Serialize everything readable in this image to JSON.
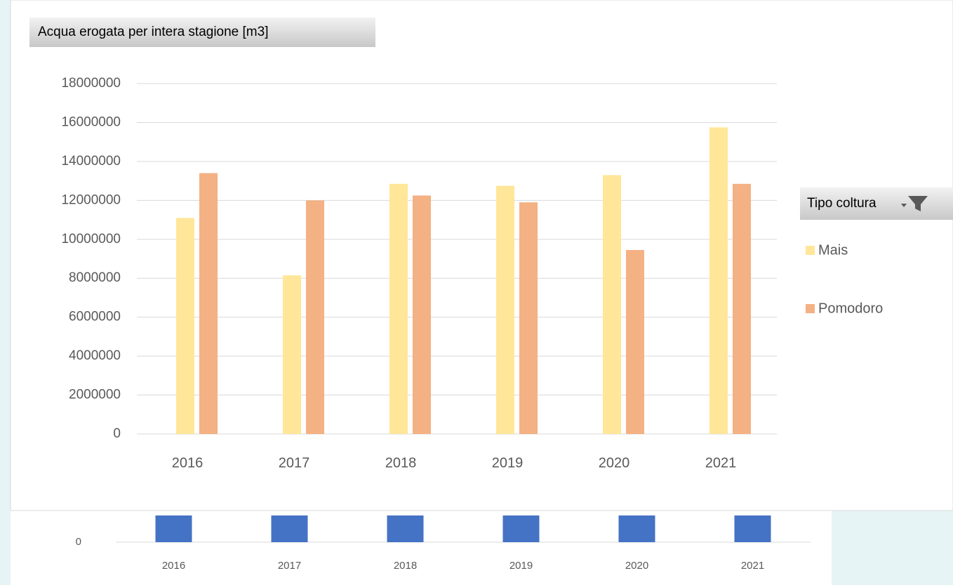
{
  "chart_data": [
    {
      "type": "bar",
      "title": "Acqua erogata per intera stagione [m3]",
      "categories": [
        "2016",
        "2017",
        "2018",
        "2019",
        "2020",
        "2021"
      ],
      "series": [
        {
          "name": "Mais",
          "color": "#ffe699",
          "values": [
            11100000,
            8150000,
            12850000,
            12750000,
            13300000,
            15750000
          ]
        },
        {
          "name": "Pomodoro",
          "color": "#f4b183",
          "values": [
            13400000,
            12000000,
            12250000,
            11900000,
            9450000,
            12850000
          ]
        }
      ],
      "ylim": [
        0,
        18000000
      ],
      "yticks": [
        0,
        2000000,
        4000000,
        6000000,
        8000000,
        10000000,
        12000000,
        14000000,
        16000000,
        18000000
      ],
      "grid": true,
      "legend_title": "Tipo coltura",
      "legend": "right"
    },
    {
      "type": "bar",
      "categories": [
        "2016",
        "2017",
        "2018",
        "2019",
        "2020",
        "2021"
      ],
      "color": "#4472c4",
      "yticks": [
        0
      ]
    }
  ]
}
